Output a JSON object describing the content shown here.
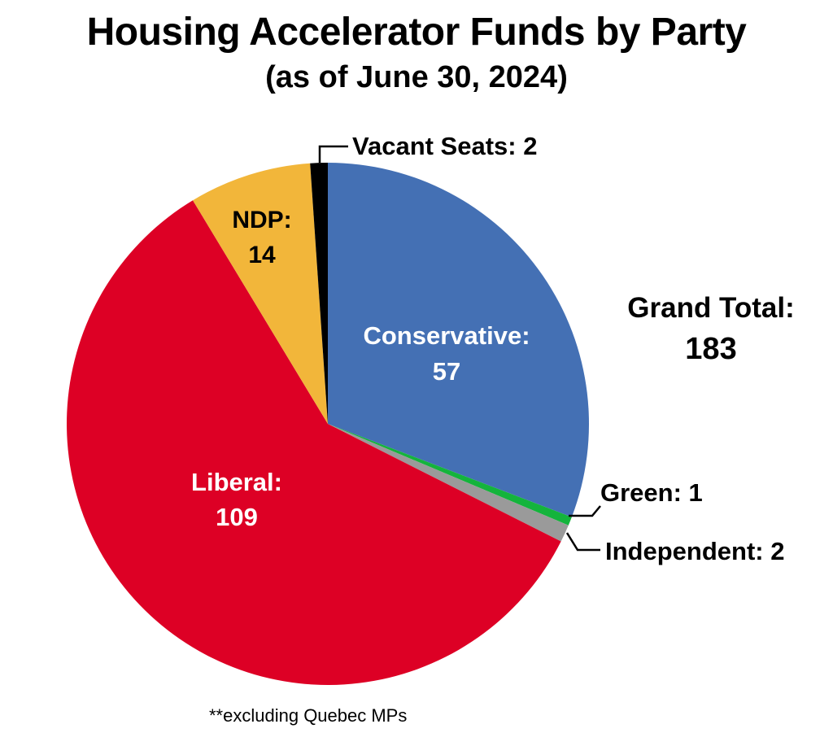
{
  "title": "Housing Accelerator Funds by Party",
  "subtitle": "(as of June 30, 2024)",
  "grand_total": {
    "label": "Grand Total:",
    "value": "183"
  },
  "footnote": "**excluding Quebec MPs",
  "chart_data": {
    "type": "pie",
    "title": "Housing Accelerator Funds by Party",
    "subtitle": "(as of June 30, 2024)",
    "total": 183,
    "start": "12 o'clock",
    "direction": "clockwise",
    "slices": [
      {
        "name": "Conservative",
        "value": 57,
        "color": "#4470B4",
        "label_line1": "Conservative:",
        "label_line2": "57",
        "label_color": "#ffffff"
      },
      {
        "name": "Green",
        "value": 1,
        "color": "#14B43C",
        "label_line1": "Green: 1",
        "label_line2": "",
        "label_color": "#000000"
      },
      {
        "name": "Independent",
        "value": 2,
        "color": "#9A9A9A",
        "label_line1": "Independent: 2",
        "label_line2": "",
        "label_color": "#000000"
      },
      {
        "name": "Liberal",
        "value": 109,
        "color": "#DD0025",
        "label_line1": "Liberal:",
        "label_line2": "109",
        "label_color": "#ffffff"
      },
      {
        "name": "NDP",
        "value": 14,
        "color": "#F2B63A",
        "label_line1": "NDP:",
        "label_line2": "14",
        "label_color": "#000000"
      },
      {
        "name": "Vacant Seats",
        "value": 2,
        "color": "#000000",
        "label_line1": "Vacant Seats: 2",
        "label_line2": "",
        "label_color": "#000000"
      }
    ]
  }
}
